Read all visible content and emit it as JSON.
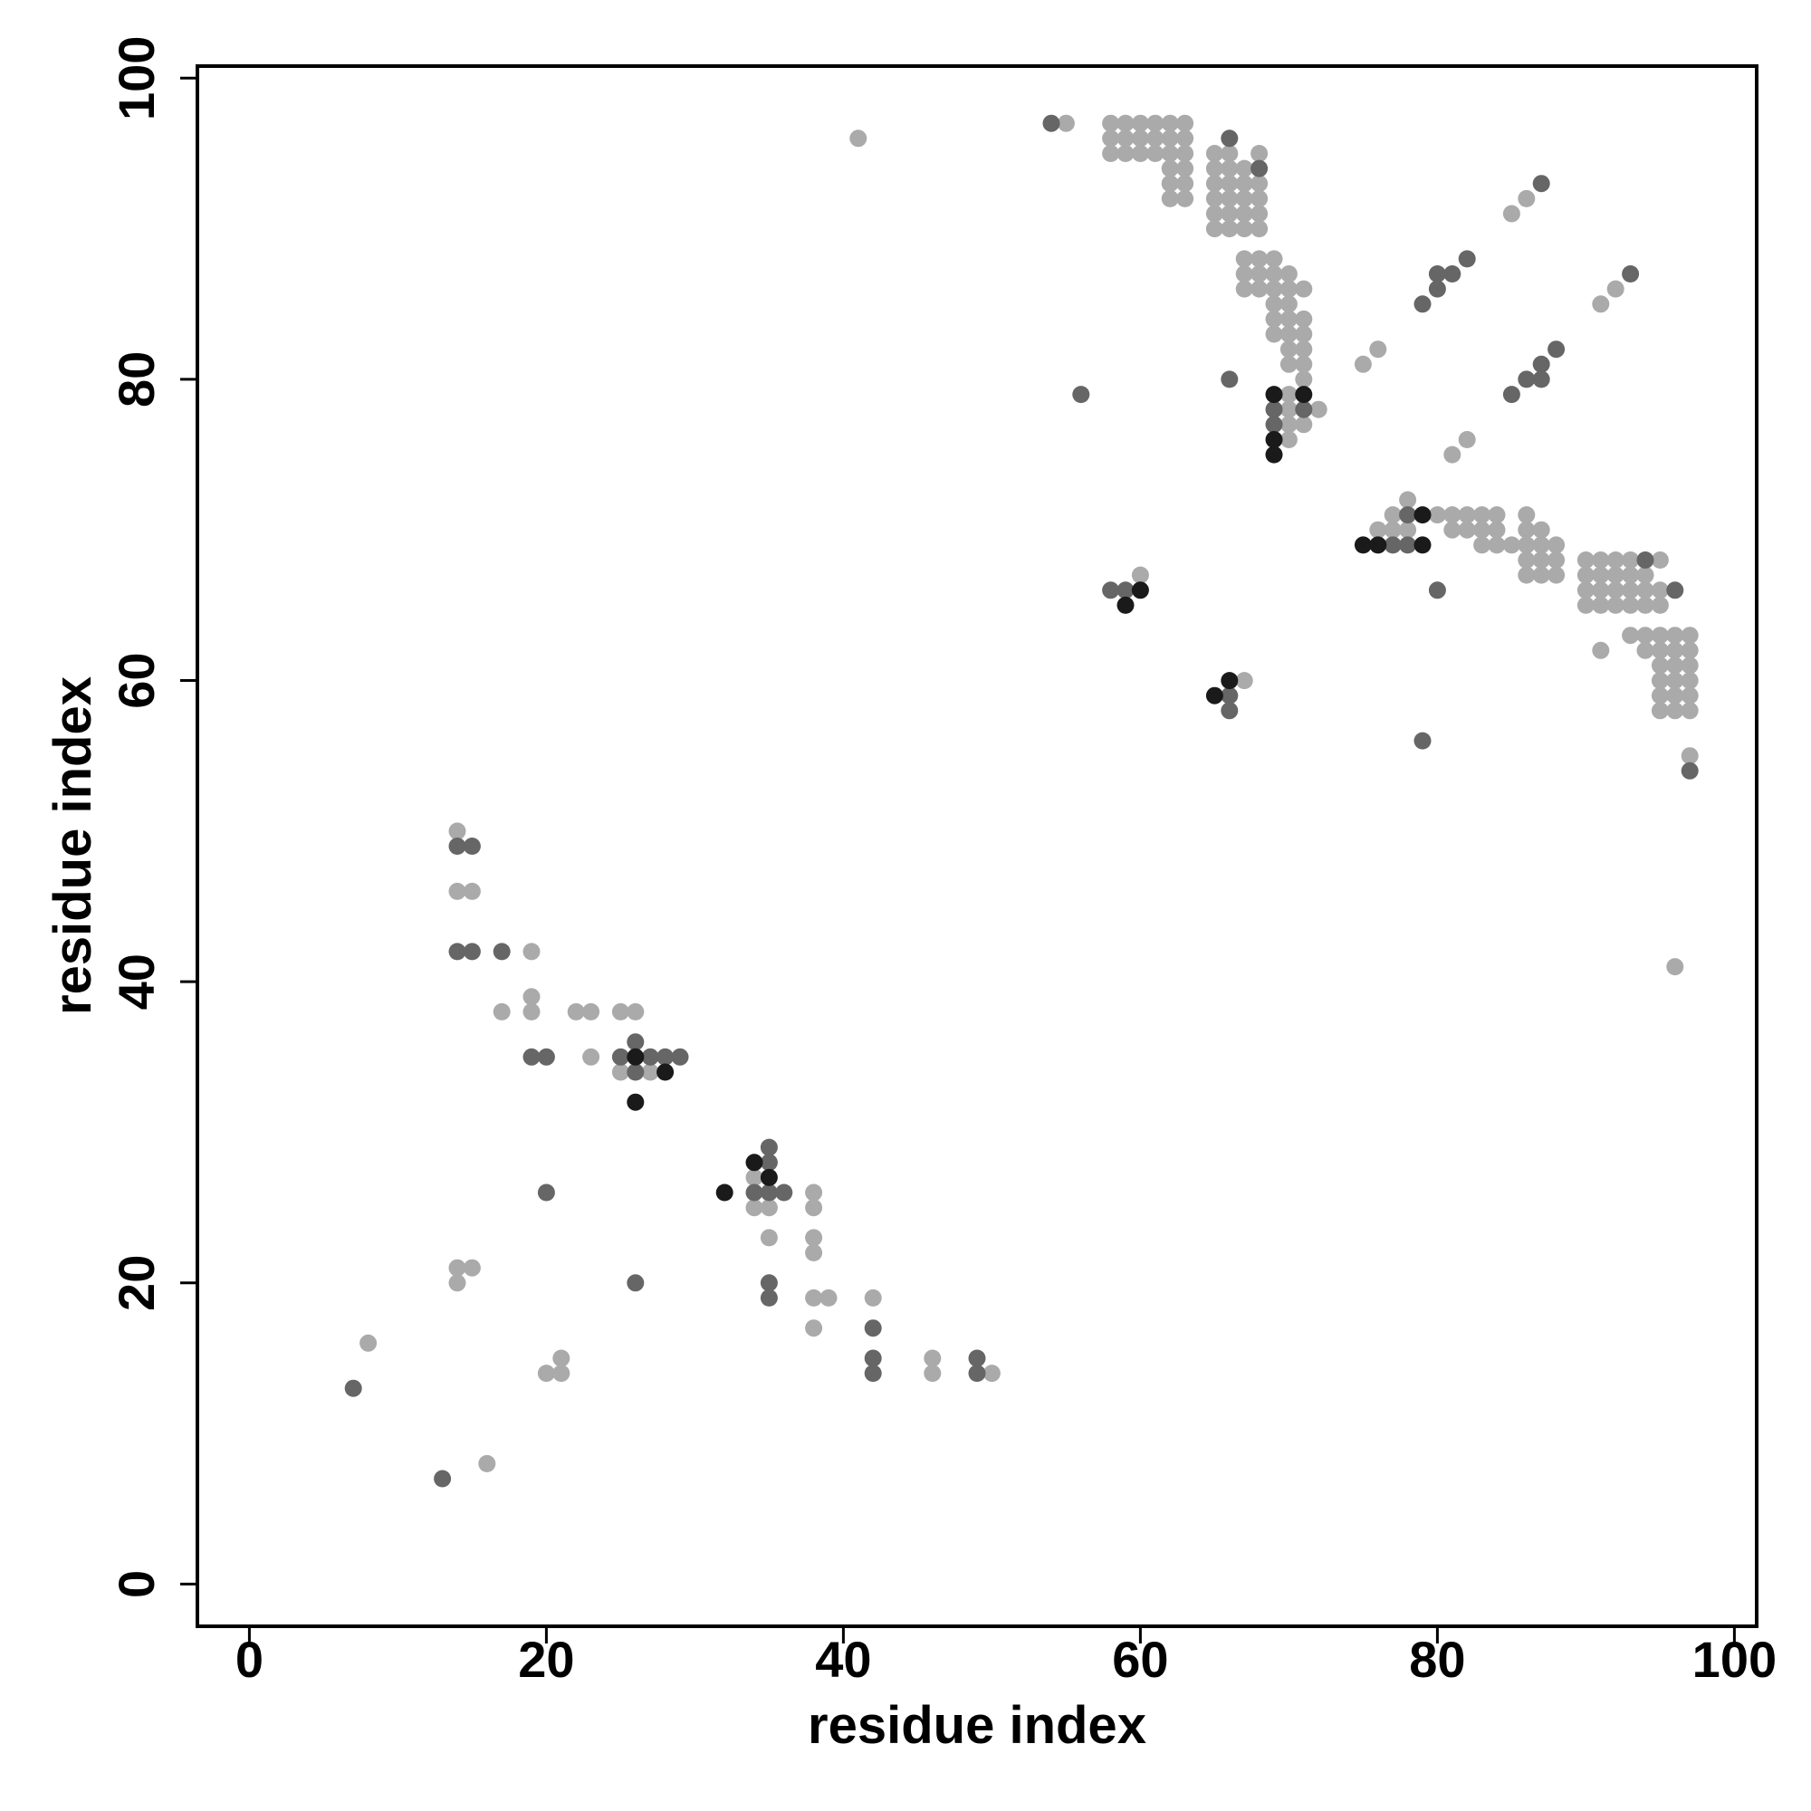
{
  "chart_data": {
    "type": "scatter",
    "title": "",
    "xlabel": "residue index",
    "ylabel": "residue index",
    "xlim": [
      -3.5,
      101.5
    ],
    "ylim": [
      -2.8,
      100.8
    ],
    "x_ticks": [
      0,
      20,
      40,
      60,
      80,
      100
    ],
    "y_ticks": [
      0,
      20,
      40,
      60,
      80,
      100
    ],
    "grid": false,
    "legend": "none",
    "colors": {
      "light": "#aaaaaa",
      "medium": "#666666",
      "dark": "#1a1a1a"
    },
    "series": [
      {
        "color_key": "light",
        "points": [
          [
            41,
            96
          ],
          [
            55,
            97
          ],
          [
            58,
            97
          ],
          [
            59,
            97
          ],
          [
            60,
            97
          ],
          [
            61,
            97
          ],
          [
            62,
            97
          ],
          [
            63,
            97
          ],
          [
            58,
            96
          ],
          [
            59,
            96
          ],
          [
            60,
            96
          ],
          [
            61,
            96
          ],
          [
            62,
            96
          ],
          [
            63,
            96
          ],
          [
            58,
            95
          ],
          [
            59,
            95
          ],
          [
            60,
            95
          ],
          [
            61,
            95
          ],
          [
            62,
            95
          ],
          [
            63,
            95
          ],
          [
            62,
            94
          ],
          [
            63,
            94
          ],
          [
            62,
            93
          ],
          [
            63,
            93
          ],
          [
            62,
            92
          ],
          [
            63,
            92
          ],
          [
            65,
            95
          ],
          [
            66,
            95
          ],
          [
            68,
            95
          ],
          [
            65,
            94
          ],
          [
            66,
            94
          ],
          [
            67,
            94
          ],
          [
            65,
            93
          ],
          [
            66,
            93
          ],
          [
            67,
            93
          ],
          [
            68,
            93
          ],
          [
            65,
            92
          ],
          [
            66,
            92
          ],
          [
            67,
            92
          ],
          [
            68,
            92
          ],
          [
            65,
            91
          ],
          [
            66,
            91
          ],
          [
            67,
            91
          ],
          [
            68,
            91
          ],
          [
            65,
            90
          ],
          [
            66,
            90
          ],
          [
            67,
            90
          ],
          [
            68,
            90
          ],
          [
            67,
            88
          ],
          [
            68,
            88
          ],
          [
            69,
            88
          ],
          [
            67,
            87
          ],
          [
            68,
            87
          ],
          [
            69,
            87
          ],
          [
            70,
            87
          ],
          [
            67,
            86
          ],
          [
            68,
            86
          ],
          [
            69,
            86
          ],
          [
            70,
            86
          ],
          [
            71,
            86
          ],
          [
            69,
            85
          ],
          [
            70,
            85
          ],
          [
            69,
            84
          ],
          [
            70,
            84
          ],
          [
            71,
            84
          ],
          [
            69,
            83
          ],
          [
            70,
            83
          ],
          [
            71,
            83
          ],
          [
            70,
            82
          ],
          [
            71,
            82
          ],
          [
            70,
            81
          ],
          [
            71,
            81
          ],
          [
            71,
            80
          ],
          [
            70,
            79
          ],
          [
            70,
            78
          ],
          [
            72,
            78
          ],
          [
            70,
            77
          ],
          [
            71,
            77
          ],
          [
            70,
            76
          ],
          [
            85,
            91
          ],
          [
            86,
            92
          ],
          [
            91,
            85
          ],
          [
            92,
            86
          ],
          [
            75,
            81
          ],
          [
            76,
            82
          ],
          [
            81,
            75
          ],
          [
            82,
            76
          ],
          [
            78,
            72
          ],
          [
            77,
            71
          ],
          [
            76,
            70
          ],
          [
            77,
            70
          ],
          [
            78,
            70
          ],
          [
            80,
            71
          ],
          [
            81,
            71
          ],
          [
            82,
            71
          ],
          [
            83,
            71
          ],
          [
            84,
            71
          ],
          [
            86,
            71
          ],
          [
            81,
            70
          ],
          [
            82,
            70
          ],
          [
            83,
            70
          ],
          [
            84,
            70
          ],
          [
            86,
            70
          ],
          [
            87,
            70
          ],
          [
            83,
            69
          ],
          [
            84,
            69
          ],
          [
            85,
            69
          ],
          [
            86,
            69
          ],
          [
            87,
            69
          ],
          [
            88,
            69
          ],
          [
            86,
            68
          ],
          [
            87,
            68
          ],
          [
            88,
            68
          ],
          [
            86,
            67
          ],
          [
            87,
            67
          ],
          [
            88,
            67
          ],
          [
            90,
            68
          ],
          [
            91,
            68
          ],
          [
            92,
            68
          ],
          [
            93,
            68
          ],
          [
            95,
            68
          ],
          [
            90,
            67
          ],
          [
            91,
            67
          ],
          [
            92,
            67
          ],
          [
            93,
            67
          ],
          [
            94,
            67
          ],
          [
            90,
            66
          ],
          [
            91,
            66
          ],
          [
            92,
            66
          ],
          [
            93,
            66
          ],
          [
            94,
            66
          ],
          [
            95,
            66
          ],
          [
            90,
            65
          ],
          [
            91,
            65
          ],
          [
            92,
            65
          ],
          [
            93,
            65
          ],
          [
            94,
            65
          ],
          [
            95,
            65
          ],
          [
            93,
            63
          ],
          [
            94,
            63
          ],
          [
            95,
            63
          ],
          [
            96,
            63
          ],
          [
            97,
            63
          ],
          [
            91,
            62
          ],
          [
            94,
            62
          ],
          [
            95,
            62
          ],
          [
            96,
            62
          ],
          [
            97,
            62
          ],
          [
            95,
            61
          ],
          [
            96,
            61
          ],
          [
            97,
            61
          ],
          [
            95,
            60
          ],
          [
            96,
            60
          ],
          [
            97,
            60
          ],
          [
            95,
            59
          ],
          [
            96,
            59
          ],
          [
            97,
            59
          ],
          [
            95,
            58
          ],
          [
            96,
            58
          ],
          [
            97,
            58
          ],
          [
            97,
            55
          ],
          [
            96,
            41
          ],
          [
            60,
            67
          ],
          [
            67,
            60
          ],
          [
            14,
            50
          ],
          [
            14,
            46
          ],
          [
            15,
            46
          ],
          [
            19,
            42
          ],
          [
            19,
            39
          ],
          [
            19,
            38
          ],
          [
            17,
            38
          ],
          [
            22,
            38
          ],
          [
            23,
            38
          ],
          [
            25,
            38
          ],
          [
            26,
            38
          ],
          [
            23,
            35
          ],
          [
            25,
            34
          ],
          [
            27,
            34
          ],
          [
            34,
            27
          ],
          [
            34,
            25
          ],
          [
            35,
            25
          ],
          [
            35,
            23
          ],
          [
            38,
            26
          ],
          [
            38,
            25
          ],
          [
            38,
            23
          ],
          [
            38,
            22
          ],
          [
            38,
            19
          ],
          [
            39,
            19
          ],
          [
            38,
            17
          ],
          [
            14,
            21
          ],
          [
            15,
            21
          ],
          [
            14,
            20
          ],
          [
            8,
            16
          ],
          [
            20,
            14
          ],
          [
            21,
            15
          ],
          [
            21,
            14
          ],
          [
            16,
            8
          ],
          [
            42,
            19
          ],
          [
            46,
            15
          ],
          [
            46,
            14
          ],
          [
            50,
            14
          ]
        ]
      },
      {
        "color_key": "medium",
        "points": [
          [
            54,
            97
          ],
          [
            66,
            96
          ],
          [
            68,
            94
          ],
          [
            87,
            93
          ],
          [
            93,
            87
          ],
          [
            82,
            88
          ],
          [
            80,
            87
          ],
          [
            81,
            87
          ],
          [
            80,
            86
          ],
          [
            79,
            85
          ],
          [
            66,
            80
          ],
          [
            56,
            79
          ],
          [
            88,
            82
          ],
          [
            87,
            81
          ],
          [
            86,
            80
          ],
          [
            87,
            80
          ],
          [
            85,
            79
          ],
          [
            69,
            78
          ],
          [
            71,
            78
          ],
          [
            69,
            77
          ],
          [
            77,
            69
          ],
          [
            78,
            69
          ],
          [
            78,
            71
          ],
          [
            94,
            68
          ],
          [
            80,
            66
          ],
          [
            96,
            66
          ],
          [
            58,
            66
          ],
          [
            59,
            66
          ],
          [
            66,
            59
          ],
          [
            66,
            58
          ],
          [
            79,
            56
          ],
          [
            97,
            54
          ],
          [
            14,
            49
          ],
          [
            15,
            49
          ],
          [
            14,
            42
          ],
          [
            15,
            42
          ],
          [
            17,
            42
          ],
          [
            19,
            35
          ],
          [
            20,
            35
          ],
          [
            26,
            36
          ],
          [
            25,
            35
          ],
          [
            27,
            35
          ],
          [
            28,
            35
          ],
          [
            29,
            35
          ],
          [
            26,
            34
          ],
          [
            35,
            29
          ],
          [
            35,
            28
          ],
          [
            34,
            26
          ],
          [
            35,
            26
          ],
          [
            36,
            26
          ],
          [
            20,
            26
          ],
          [
            26,
            20
          ],
          [
            35,
            20
          ],
          [
            35,
            19
          ],
          [
            7,
            13
          ],
          [
            13,
            7
          ],
          [
            42,
            17
          ],
          [
            42,
            15
          ],
          [
            42,
            14
          ],
          [
            49,
            15
          ],
          [
            49,
            14
          ]
        ]
      },
      {
        "color_key": "dark",
        "points": [
          [
            69,
            79
          ],
          [
            71,
            79
          ],
          [
            69,
            76
          ],
          [
            69,
            75
          ],
          [
            75,
            69
          ],
          [
            76,
            69
          ],
          [
            79,
            69
          ],
          [
            79,
            71
          ],
          [
            59,
            65
          ],
          [
            60,
            66
          ],
          [
            65,
            59
          ],
          [
            66,
            60
          ],
          [
            26,
            35
          ],
          [
            28,
            34
          ],
          [
            26,
            32
          ],
          [
            34,
            28
          ],
          [
            35,
            27
          ],
          [
            32,
            26
          ]
        ]
      }
    ]
  }
}
